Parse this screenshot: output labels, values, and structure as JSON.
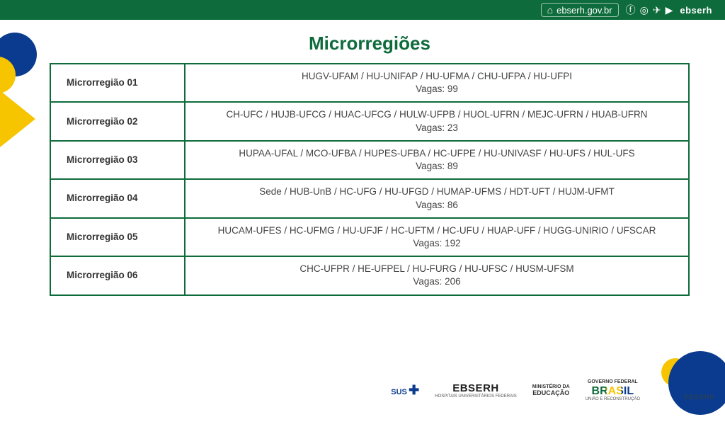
{
  "topbar": {
    "url": "ebserh.gov.br",
    "brand": "ebserh",
    "social_icons": [
      "facebook-icon",
      "instagram-icon",
      "telegram-icon",
      "youtube-icon"
    ]
  },
  "title": "Microrregiões",
  "vagas_prefix": "Vagas: ",
  "table": {
    "rows": [
      {
        "label": "Microrregião 01",
        "units": "HUGV-UFAM / HU-UNIFAP / HU-UFMA /  CHU-UFPA / HU-UFPI",
        "vagas": 99
      },
      {
        "label": "Microrregião 02",
        "units": "CH-UFC / HUJB-UFCG / HUAC-UFCG / HULW-UFPB / HUOL-UFRN / MEJC-UFRN / HUAB-UFRN",
        "vagas": 23
      },
      {
        "label": "Microrregião 03",
        "units": "HUPAA-UFAL / MCO-UFBA / HUPES-UFBA / HC-UFPE / HU-UNIVASF / HU-UFS / HUL-UFS",
        "vagas": 89
      },
      {
        "label": "Microrregião 04",
        "units": "Sede / HUB-UnB / HC-UFG / HU-UFGD / HUMAP-UFMS / HDT-UFT / HUJM-UFMT",
        "vagas": 86
      },
      {
        "label": "Microrregião 05",
        "units": "HUCAM-UFES / HC-UFMG / HU-UFJF / HC-UFTM / HC-UFU / HUAP-UFF / HUGG-UNIRIO / UFSCAR",
        "vagas": 192
      },
      {
        "label": "Microrregião 06",
        "units": "CHC-UFPR / HE-UFPEL / HU-FURG / HU-UFSC / HUSM-UFSM",
        "vagas": 206
      }
    ]
  },
  "footer": {
    "sus": "SUS",
    "ebserh": "EBSERH",
    "ebserh_sub": "HOSPITAIS UNIVERSITÁRIOS FEDERAIS",
    "mec_line1": "MINISTÉRIO DA",
    "mec_line2": "EDUCAÇÃO",
    "gov_line1": "GOVERNO FEDERAL",
    "brasil": "BRASIL",
    "gov_sub": "UNIÃO E RECONSTRUÇÃO",
    "watermark": "EBSERH"
  },
  "colors": {
    "brand_green": "#0e6b3b",
    "brand_blue": "#0a3b8f",
    "brand_yellow": "#f6c500",
    "text": "#444444",
    "background": "#ffffff"
  }
}
